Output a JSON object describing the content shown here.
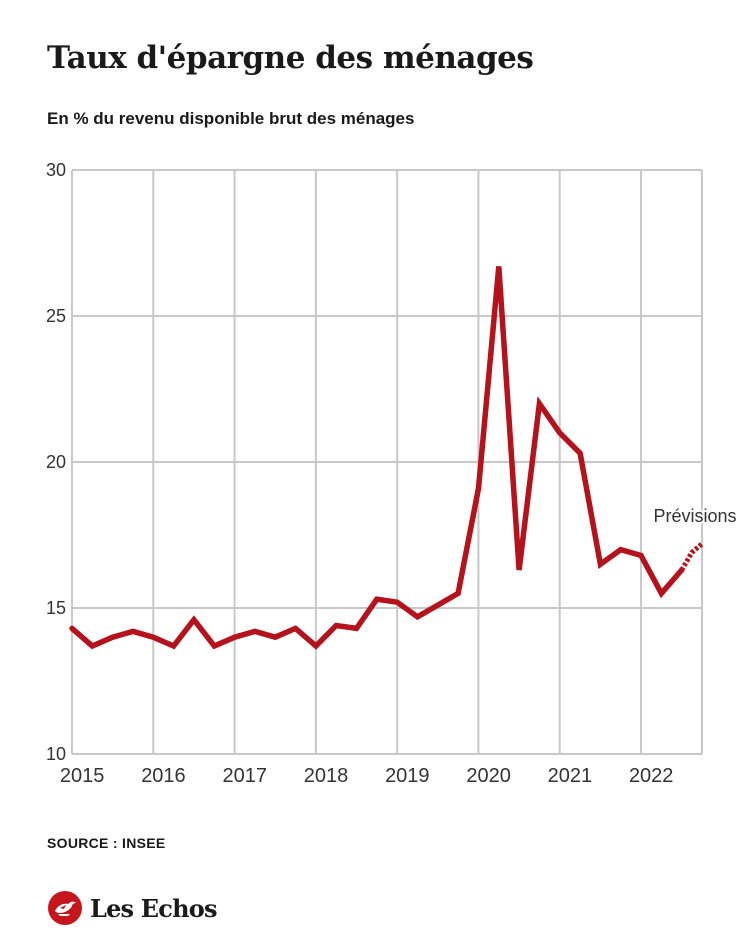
{
  "header": {
    "title": "Taux d'épargne des ménages",
    "subtitle": "En % du revenu disponible brut des ménages"
  },
  "footer": {
    "source": "SOURCE : INSEE",
    "logo_text": "Les Echos"
  },
  "colors": {
    "series": "#b5121b",
    "grid": "#c8c8c8",
    "text": "#1a1a1a"
  },
  "chart_data": {
    "type": "line",
    "title": "Taux d'épargne des ménages",
    "subtitle": "En % du revenu disponible brut des ménages",
    "xlabel": "",
    "ylabel": "",
    "ylim": [
      10,
      30
    ],
    "yticks": [
      10,
      15,
      20,
      25,
      30
    ],
    "xlim": [
      2014.875,
      2022.625
    ],
    "xticks": [
      2015,
      2016,
      2017,
      2018,
      2019,
      2020,
      2021,
      2022
    ],
    "xtick_labels": [
      "2015",
      "2016",
      "2017",
      "2018",
      "2019",
      "2020",
      "2021",
      "2022"
    ],
    "grid": true,
    "annotation": "Prévisions",
    "series": [
      {
        "style": "solid",
        "x": [
          "T4 2014",
          "T1 2015",
          "T2 2015",
          "T3 2015",
          "T4 2015",
          "T1 2016",
          "T2 2016",
          "T3 2016",
          "T4 2016",
          "T1 2017",
          "T2 2017",
          "T3 2017",
          "T4 2017",
          "T1 2018",
          "T2 2018",
          "T3 2018",
          "T4 2018",
          "T1 2019",
          "T2 2019",
          "T3 2019",
          "T4 2019",
          "T1 2020",
          "T2 2020",
          "T3 2020",
          "T4 2020",
          "T1 2021",
          "T2 2021",
          "T3 2021",
          "T4 2021",
          "T1 2022",
          "T2 2022"
        ],
        "x_num": [
          2014.875,
          2015.125,
          2015.375,
          2015.625,
          2015.875,
          2016.125,
          2016.375,
          2016.625,
          2016.875,
          2017.125,
          2017.375,
          2017.625,
          2017.875,
          2018.125,
          2018.375,
          2018.625,
          2018.875,
          2019.125,
          2019.375,
          2019.625,
          2019.875,
          2020.125,
          2020.375,
          2020.625,
          2020.875,
          2021.125,
          2021.375,
          2021.625,
          2021.875,
          2022.125,
          2022.375
        ],
        "values": [
          14.3,
          13.7,
          14.0,
          14.2,
          14.0,
          13.7,
          14.6,
          13.7,
          14.0,
          14.2,
          14.0,
          14.3,
          13.7,
          14.4,
          14.3,
          15.3,
          15.2,
          14.7,
          15.1,
          15.5,
          19.1,
          26.7,
          16.3,
          22.0,
          21.0,
          20.3,
          16.5,
          17.0,
          16.8,
          15.5,
          16.3
        ]
      },
      {
        "style": "dashed",
        "x": [
          "T2 2022",
          "T3 2022",
          "T4 2022"
        ],
        "x_num": [
          2022.375,
          2022.5,
          2022.625
        ],
        "values": [
          16.3,
          16.9,
          17.2
        ]
      }
    ]
  }
}
